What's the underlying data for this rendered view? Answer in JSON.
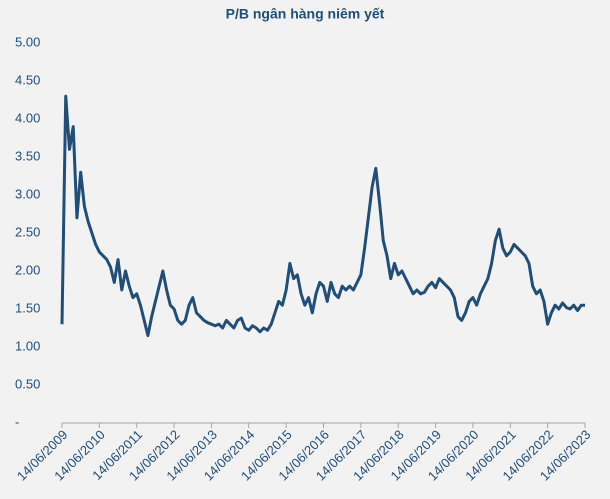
{
  "chart_data": {
    "type": "line",
    "title": "P/B ngân hàng niêm yết",
    "x": [
      2009.45,
      2009.55,
      2009.65,
      2009.75,
      2009.85,
      2009.95,
      2010.05,
      2010.15,
      2010.25,
      2010.35,
      2010.45,
      2010.55,
      2010.65,
      2010.75,
      2010.85,
      2010.95,
      2011.05,
      2011.15,
      2011.25,
      2011.35,
      2011.45,
      2011.55,
      2011.65,
      2011.75,
      2011.85,
      2011.95,
      2012.05,
      2012.15,
      2012.25,
      2012.35,
      2012.45,
      2012.55,
      2012.65,
      2012.75,
      2012.85,
      2012.95,
      2013.05,
      2013.15,
      2013.25,
      2013.35,
      2013.45,
      2013.55,
      2013.65,
      2013.75,
      2013.85,
      2013.95,
      2014.05,
      2014.15,
      2014.25,
      2014.35,
      2014.45,
      2014.55,
      2014.65,
      2014.75,
      2014.85,
      2014.95,
      2015.05,
      2015.15,
      2015.25,
      2015.35,
      2015.45,
      2015.55,
      2015.65,
      2015.75,
      2015.85,
      2015.95,
      2016.05,
      2016.15,
      2016.25,
      2016.35,
      2016.45,
      2016.55,
      2016.65,
      2016.75,
      2016.85,
      2016.95,
      2017.05,
      2017.15,
      2017.25,
      2017.35,
      2017.45,
      2017.55,
      2017.65,
      2017.75,
      2017.85,
      2017.95,
      2018.05,
      2018.15,
      2018.25,
      2018.35,
      2018.45,
      2018.55,
      2018.65,
      2018.75,
      2018.85,
      2018.95,
      2019.05,
      2019.15,
      2019.25,
      2019.35,
      2019.45,
      2019.55,
      2019.65,
      2019.75,
      2019.85,
      2019.95,
      2020.05,
      2020.15,
      2020.25,
      2020.35,
      2020.45,
      2020.55,
      2020.65,
      2020.75,
      2020.85,
      2020.95,
      2021.05,
      2021.15,
      2021.25,
      2021.35,
      2021.45,
      2021.55,
      2021.65,
      2021.75,
      2021.85,
      2021.95,
      2022.05,
      2022.15,
      2022.25,
      2022.35,
      2022.45,
      2022.55,
      2022.65,
      2022.75,
      2022.85,
      2022.95,
      2023.05,
      2023.15,
      2023.25,
      2023.35,
      2023.45
    ],
    "series": [
      {
        "name": "P/B",
        "color": "#1f4e79",
        "values": [
          1.3,
          4.3,
          3.6,
          3.9,
          2.7,
          3.3,
          2.85,
          2.65,
          2.5,
          2.35,
          2.25,
          2.2,
          2.15,
          2.05,
          1.85,
          2.15,
          1.75,
          2.0,
          1.8,
          1.65,
          1.7,
          1.55,
          1.35,
          1.15,
          1.4,
          1.6,
          1.8,
          2.0,
          1.75,
          1.55,
          1.5,
          1.35,
          1.3,
          1.35,
          1.55,
          1.65,
          1.45,
          1.4,
          1.35,
          1.32,
          1.3,
          1.28,
          1.3,
          1.25,
          1.35,
          1.3,
          1.25,
          1.35,
          1.38,
          1.25,
          1.22,
          1.28,
          1.25,
          1.2,
          1.25,
          1.22,
          1.3,
          1.45,
          1.6,
          1.55,
          1.75,
          2.1,
          1.9,
          1.95,
          1.7,
          1.55,
          1.65,
          1.45,
          1.7,
          1.85,
          1.8,
          1.6,
          1.85,
          1.7,
          1.65,
          1.8,
          1.75,
          1.8,
          1.75,
          1.85,
          1.95,
          2.3,
          2.7,
          3.1,
          3.35,
          2.9,
          2.4,
          2.2,
          1.9,
          2.1,
          1.95,
          2.0,
          1.9,
          1.8,
          1.7,
          1.75,
          1.7,
          1.72,
          1.8,
          1.85,
          1.78,
          1.9,
          1.85,
          1.8,
          1.75,
          1.65,
          1.4,
          1.35,
          1.45,
          1.6,
          1.65,
          1.55,
          1.7,
          1.8,
          1.9,
          2.1,
          2.4,
          2.55,
          2.3,
          2.2,
          2.25,
          2.35,
          2.3,
          2.25,
          2.2,
          2.1,
          1.8,
          1.7,
          1.75,
          1.6,
          1.3,
          1.45,
          1.55,
          1.5,
          1.58,
          1.52,
          1.5,
          1.55,
          1.48,
          1.55,
          1.55
        ]
      }
    ],
    "xlim": [
      2009.45,
      2023.45
    ],
    "xticks": [
      {
        "value": 2009.45,
        "label": "14/06/2009"
      },
      {
        "value": 2010.45,
        "label": "14/06/2010"
      },
      {
        "value": 2011.45,
        "label": "14/06/2011"
      },
      {
        "value": 2012.45,
        "label": "14/06/2012"
      },
      {
        "value": 2013.45,
        "label": "14/06/2013"
      },
      {
        "value": 2014.45,
        "label": "14/06/2014"
      },
      {
        "value": 2015.45,
        "label": "14/06/2015"
      },
      {
        "value": 2016.45,
        "label": "14/06/2016"
      },
      {
        "value": 2017.45,
        "label": "14/06/2017"
      },
      {
        "value": 2018.45,
        "label": "14/06/2018"
      },
      {
        "value": 2019.45,
        "label": "14/06/2019"
      },
      {
        "value": 2020.45,
        "label": "14/06/2020"
      },
      {
        "value": 2021.45,
        "label": "14/06/2021"
      },
      {
        "value": 2022.45,
        "label": "14/06/2022"
      },
      {
        "value": 2023.45,
        "label": "14/06/2023"
      }
    ],
    "ylim": [
      0,
      5
    ],
    "yticks": [
      {
        "value": 0,
        "label": "-"
      },
      {
        "value": 0.5,
        "label": "0.50"
      },
      {
        "value": 1,
        "label": "1.00"
      },
      {
        "value": 1.5,
        "label": "1.50"
      },
      {
        "value": 2,
        "label": "2.00"
      },
      {
        "value": 2.5,
        "label": "2.50"
      },
      {
        "value": 3,
        "label": "3.00"
      },
      {
        "value": 3.5,
        "label": "3.50"
      },
      {
        "value": 4,
        "label": "4.00"
      },
      {
        "value": 4.5,
        "label": "4.50"
      },
      {
        "value": 5,
        "label": "5.00"
      }
    ],
    "grid": false
  }
}
